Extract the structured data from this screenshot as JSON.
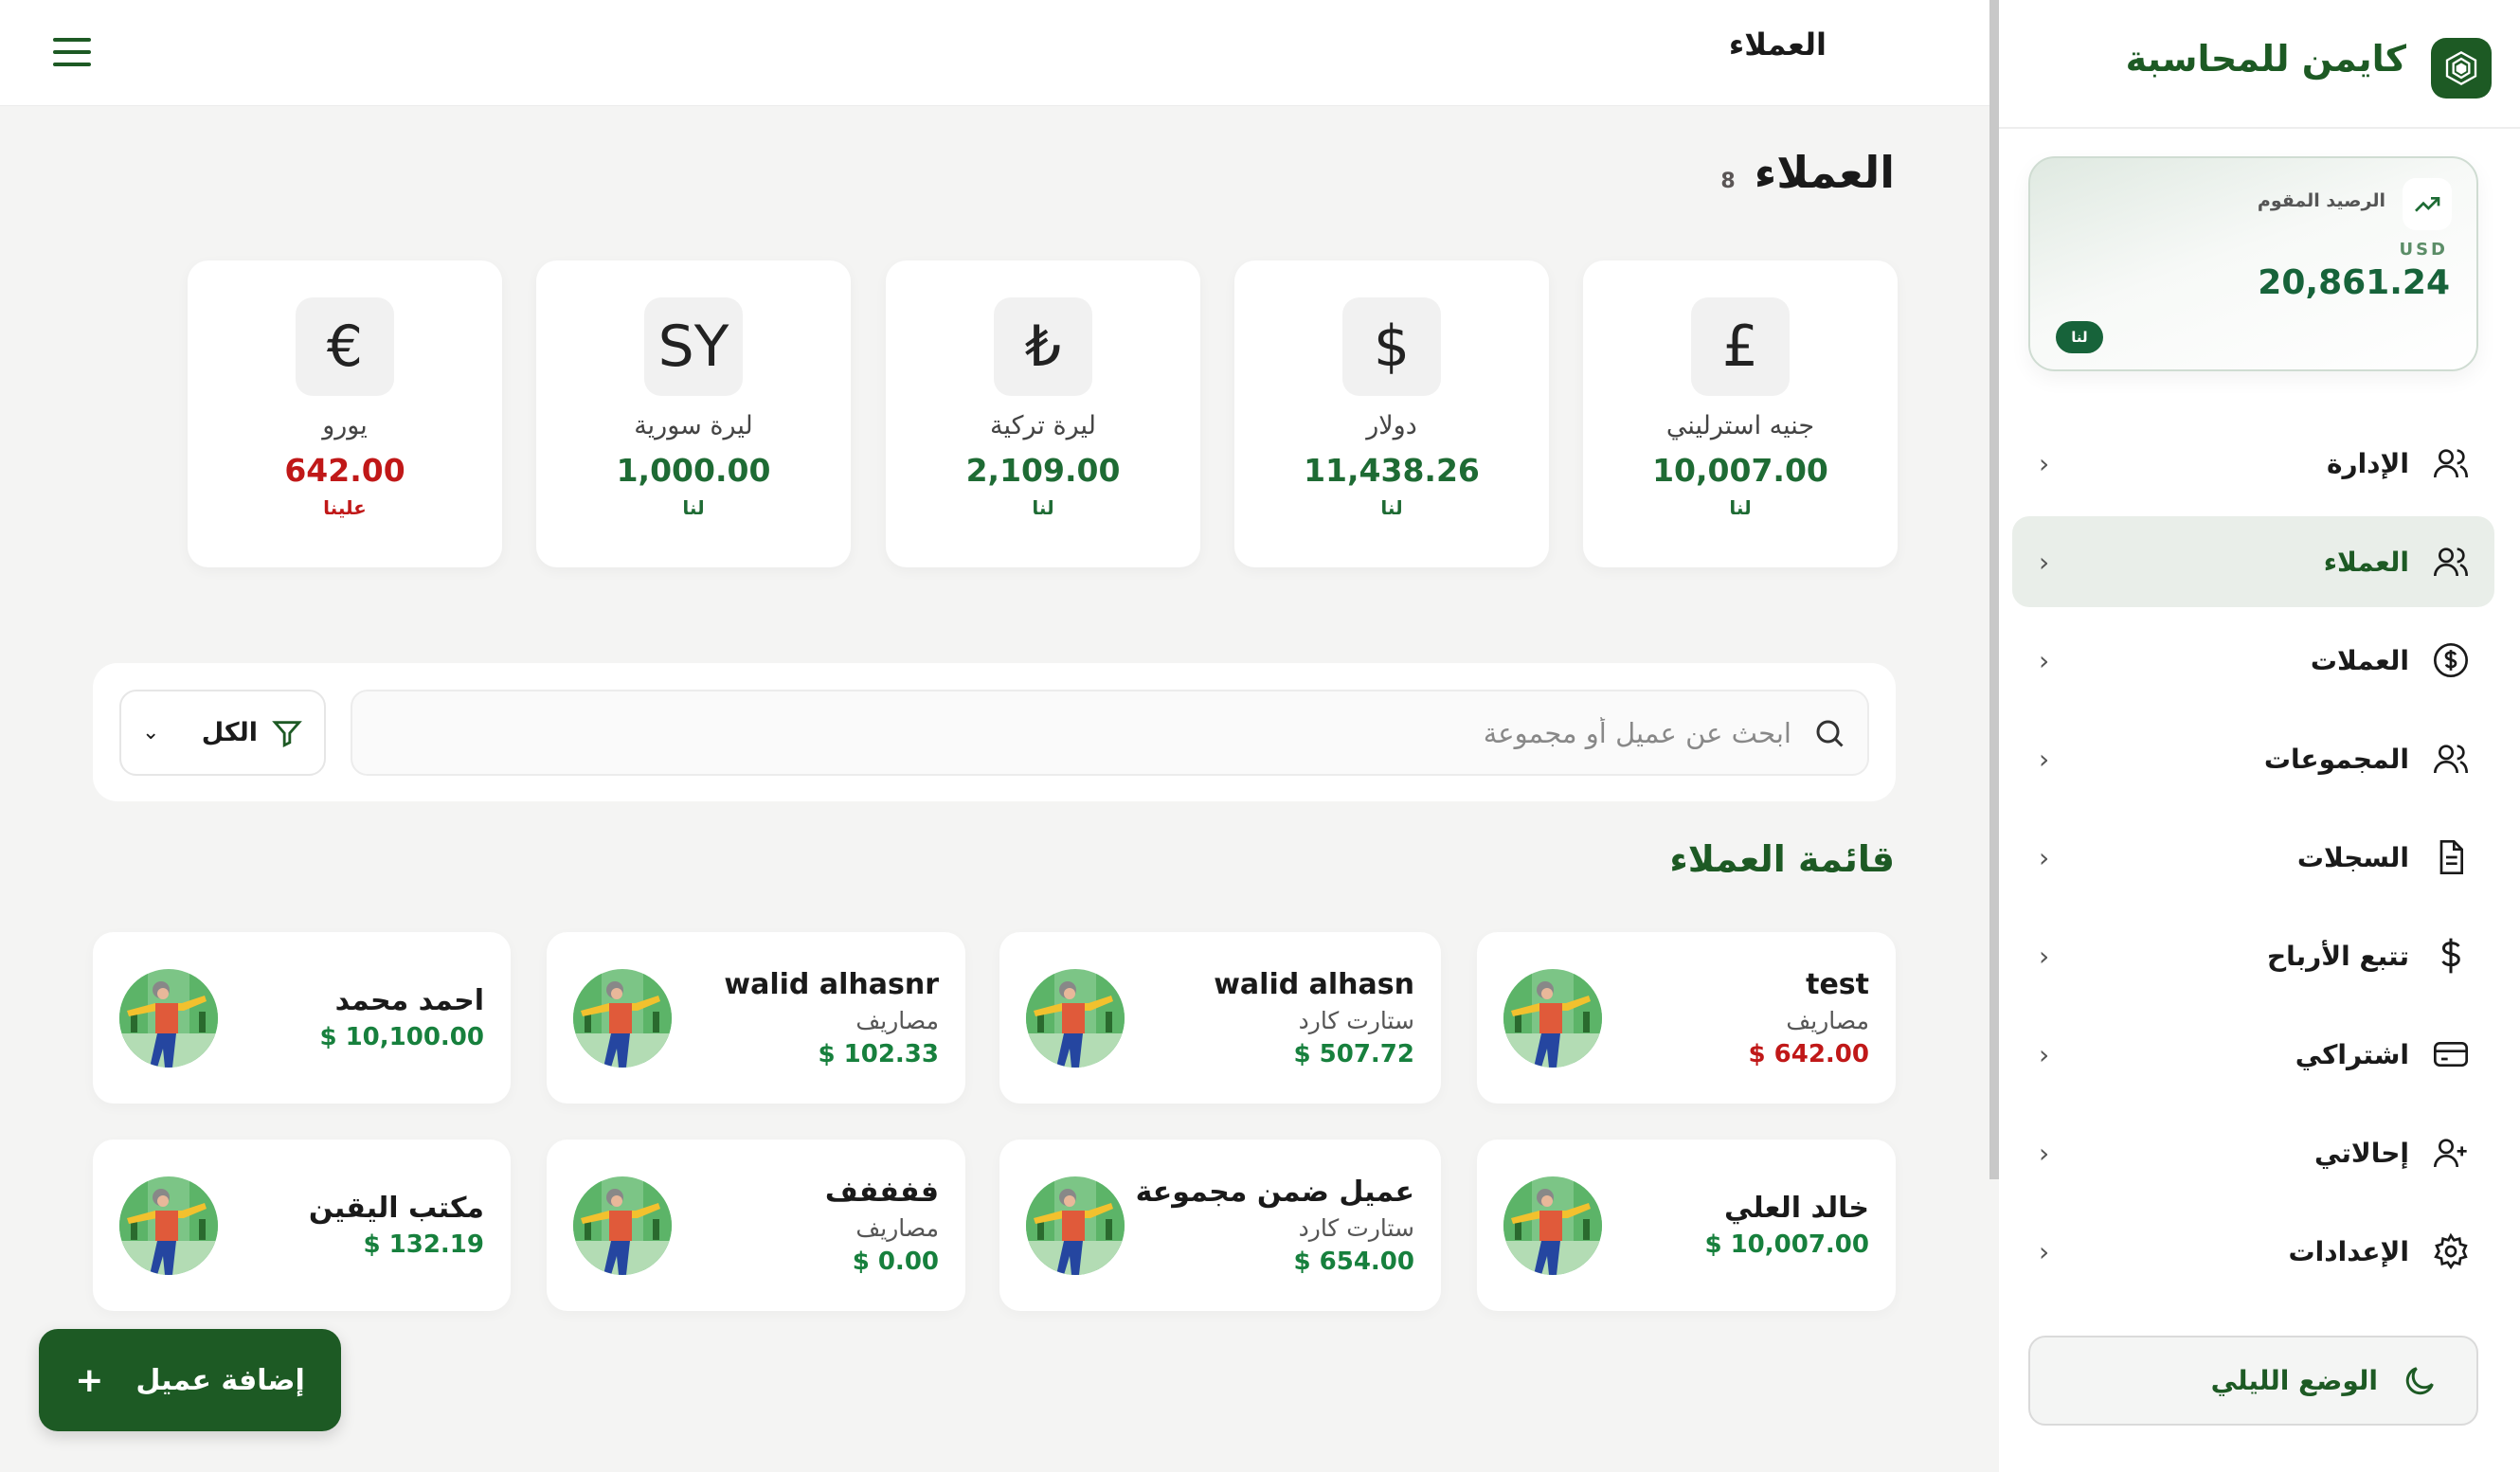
{
  "header": {
    "title": "العملاء",
    "menu_icon": "hamburger-icon"
  },
  "page": {
    "title": "العملاء",
    "count": "8"
  },
  "currency_cards": [
    {
      "symbol": "£",
      "name": "جنيه استرليني",
      "value": "10,007.00",
      "status": "لنا",
      "negative": false
    },
    {
      "symbol": "$",
      "name": "دولار",
      "value": "11,438.26",
      "status": "لنا",
      "negative": false
    },
    {
      "symbol": "₺",
      "name": "ليرة تركية",
      "value": "2,109.00",
      "status": "لنا",
      "negative": false
    },
    {
      "symbol": "SY",
      "name": "ليرة سورية",
      "value": "1,000.00",
      "status": "لنا",
      "negative": false
    },
    {
      "symbol": "€",
      "name": "يورو",
      "value": "642.00",
      "status": "علينا",
      "negative": true
    }
  ],
  "search": {
    "placeholder": "ابحث عن عميل أو مجموعة",
    "value": "",
    "filter_label": "الكل"
  },
  "list": {
    "title": "قائمة العملاء"
  },
  "clients": [
    {
      "name": "test",
      "group": "مصاريف",
      "amount": "$ 642.00",
      "negative": true
    },
    {
      "name": "walid alhasn",
      "group": "ستارت كارد",
      "amount": "$ 507.72",
      "negative": false
    },
    {
      "name": "walid alhasnr",
      "group": "مصاريف",
      "amount": "$ 102.33",
      "negative": false
    },
    {
      "name": "احمد محمد",
      "group": "",
      "amount": "$ 10,100.00",
      "negative": false
    },
    {
      "name": "خالد العلي",
      "group": "",
      "amount": "$ 10,007.00",
      "negative": false
    },
    {
      "name": "عميل ضمن مجموعة",
      "group": "ستارت كارد",
      "amount": "$ 654.00",
      "negative": false
    },
    {
      "name": "ففففف",
      "group": "مصاريف",
      "amount": "$ 0.00",
      "negative": false
    },
    {
      "name": "مكتب اليقين",
      "group": "",
      "amount": "$ 132.19",
      "negative": false
    }
  ],
  "add_button": {
    "label": "إضافة عميل",
    "icon": "plus-icon"
  },
  "sidebar": {
    "brand": "كايمن للمحاسبة",
    "balance": {
      "label": "الرصيد المقوم",
      "currency": "USD",
      "amount": "20,861.24",
      "status": "لنا"
    },
    "items": [
      {
        "label": "الإدارة",
        "icon": "users-icon",
        "active": false
      },
      {
        "label": "العملاء",
        "icon": "users-icon",
        "active": true
      },
      {
        "label": "العملات",
        "icon": "dollar-circle-icon",
        "active": false
      },
      {
        "label": "المجموعات",
        "icon": "users-icon",
        "active": false
      },
      {
        "label": "السجلات",
        "icon": "document-icon",
        "active": false
      },
      {
        "label": "تتبع الأرباح",
        "icon": "dollar-icon",
        "active": false
      },
      {
        "label": "اشتراكي",
        "icon": "credit-card-icon",
        "active": false
      },
      {
        "label": "إحالاتي",
        "icon": "user-plus-icon",
        "active": false
      },
      {
        "label": "الإعدادات",
        "icon": "gear-icon",
        "active": false
      }
    ],
    "dark_mode_label": "الوضع الليلي"
  },
  "colors": {
    "brand": "#1d5a24",
    "positive": "#17803d",
    "negative": "#c01818",
    "background": "#f4f4f3"
  }
}
